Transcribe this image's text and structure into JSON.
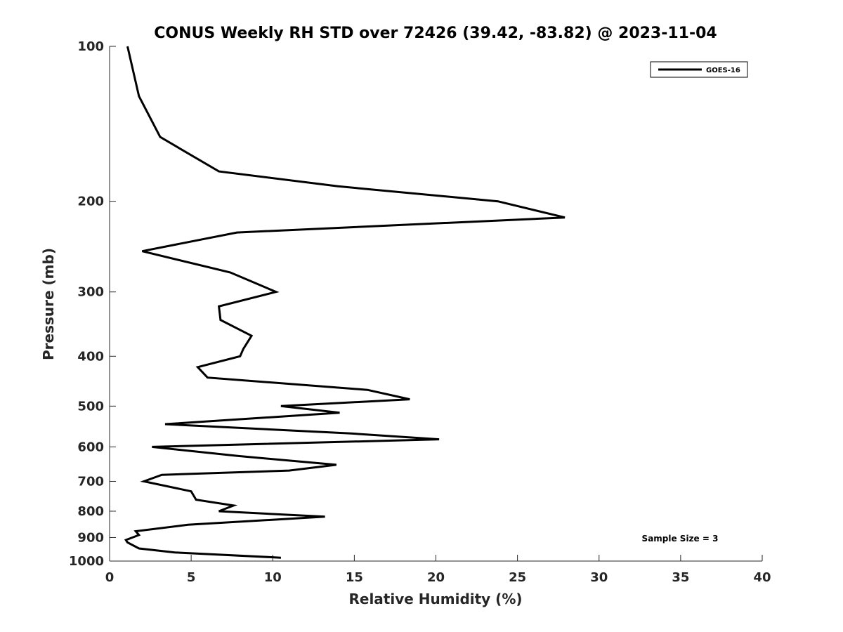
{
  "chart_data": {
    "type": "line",
    "title": "CONUS Weekly RH STD over 72426 (39.42, -83.82) @ 2023-11-04",
    "xlabel": "Relative Humidity (%)",
    "ylabel": "Pressure (mb)",
    "xlim": [
      0,
      40
    ],
    "ylim": [
      100,
      1000
    ],
    "y_scale": "log",
    "y_reversed": true,
    "x_ticks": [
      "0",
      "5",
      "10",
      "15",
      "20",
      "25",
      "30",
      "35",
      "40"
    ],
    "y_ticks": [
      "100",
      "200",
      "300",
      "400",
      "500",
      "600",
      "700",
      "800",
      "900",
      "1000"
    ],
    "grid": false,
    "legend_position": "top-right",
    "annotation": "Sample Size = 3",
    "series": [
      {
        "name": "GOES-16",
        "color": "#000000",
        "points": [
          [
            1.1,
            100
          ],
          [
            1.8,
            125
          ],
          [
            3.1,
            150
          ],
          [
            6.7,
            175
          ],
          [
            14.0,
            187
          ],
          [
            23.8,
            200
          ],
          [
            27.9,
            215
          ],
          [
            7.8,
            230
          ],
          [
            2.0,
            250
          ],
          [
            7.4,
            275
          ],
          [
            10.2,
            300
          ],
          [
            6.7,
            320
          ],
          [
            6.8,
            340
          ],
          [
            8.7,
            365
          ],
          [
            8.2,
            387
          ],
          [
            8.0,
            400
          ],
          [
            5.4,
            420
          ],
          [
            6.0,
            440
          ],
          [
            15.8,
            465
          ],
          [
            18.4,
            485
          ],
          [
            10.5,
            500
          ],
          [
            14.1,
            515
          ],
          [
            3.4,
            542
          ],
          [
            14.8,
            565
          ],
          [
            20.2,
            580
          ],
          [
            2.6,
            600
          ],
          [
            7.9,
            625
          ],
          [
            13.9,
            650
          ],
          [
            11.0,
            667
          ],
          [
            3.2,
            680
          ],
          [
            2.1,
            700
          ],
          [
            5.0,
            732
          ],
          [
            5.3,
            760
          ],
          [
            7.6,
            780
          ],
          [
            6.7,
            800
          ],
          [
            13.2,
            820
          ],
          [
            4.8,
            850
          ],
          [
            1.6,
            875
          ],
          [
            1.8,
            890
          ],
          [
            1.0,
            910
          ],
          [
            1.1,
            920
          ],
          [
            1.8,
            945
          ],
          [
            4.0,
            962
          ],
          [
            10.5,
            985
          ]
        ]
      }
    ]
  }
}
